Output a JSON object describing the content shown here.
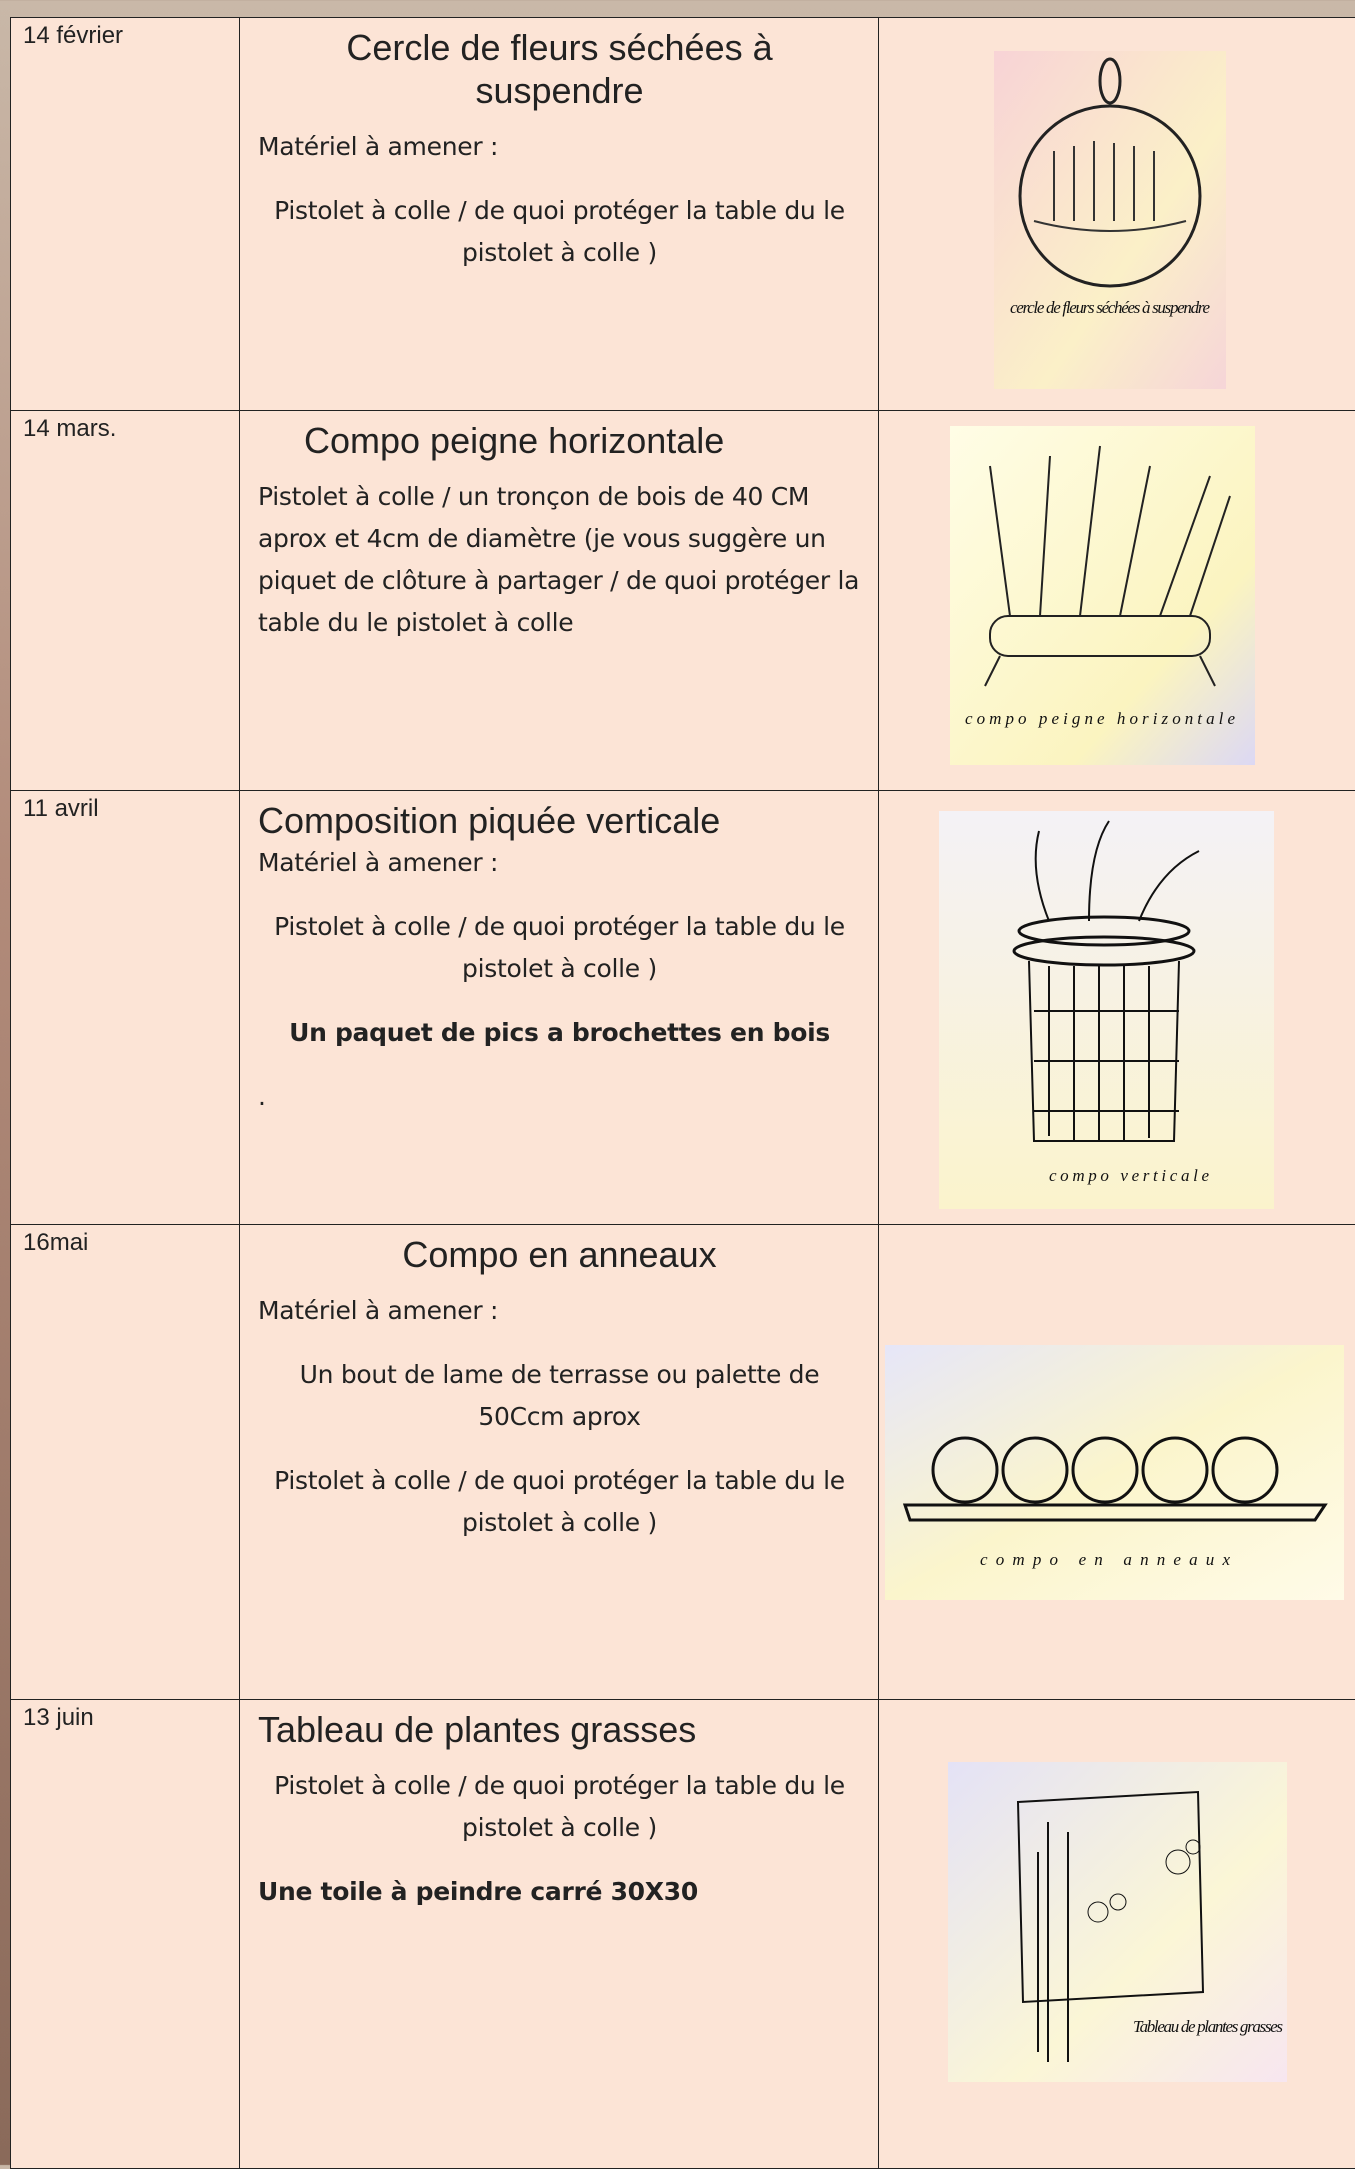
{
  "rows": [
    {
      "date": "14  février",
      "title": "Cercle de fleurs séchées à suspendre",
      "paragraphs": [
        "Matériel à amener :",
        "Pistolet à colle / de quoi protéger la table du le pistolet à colle )"
      ],
      "sketch_caption": "cercle de fleurs séchées à suspendre"
    },
    {
      "date": "14 mars.",
      "title": "Compo peigne horizontale",
      "paragraphs": [
        "Pistolet à colle / un tronçon de bois de  40 CM aprox  et 4cm de diamètre (je vous suggère un piquet de clôture à partager  / de quoi protéger la table du le pistolet à colle"
      ],
      "sketch_caption": "compo peigne horizontale"
    },
    {
      "date": "11 avril",
      "title": "Composition piquée verticale",
      "paragraphs": [
        "Matériel à amener :",
        "Pistolet à colle / de quoi protéger la table du le pistolet à colle )",
        "Un paquet de pics a brochettes en bois",
        "."
      ],
      "sketch_caption": "compo verticale"
    },
    {
      "date": "16mai",
      "title": "Compo en anneaux",
      "paragraphs": [
        "Matériel à amener :",
        "Un bout de lame de terrasse ou palette de 50Ccm aprox",
        "Pistolet à colle / de quoi protéger la table du le pistolet à colle )"
      ],
      "sketch_caption": "compo en anneaux"
    },
    {
      "date": "13 juin",
      "title": "Tableau de plantes grasses",
      "paragraphs": [
        "Pistolet à colle / de quoi protéger la table du le pistolet à colle )",
        "Une toile à peindre carré 30X30"
      ],
      "sketch_caption": "Tableau de plantes grasses"
    }
  ]
}
